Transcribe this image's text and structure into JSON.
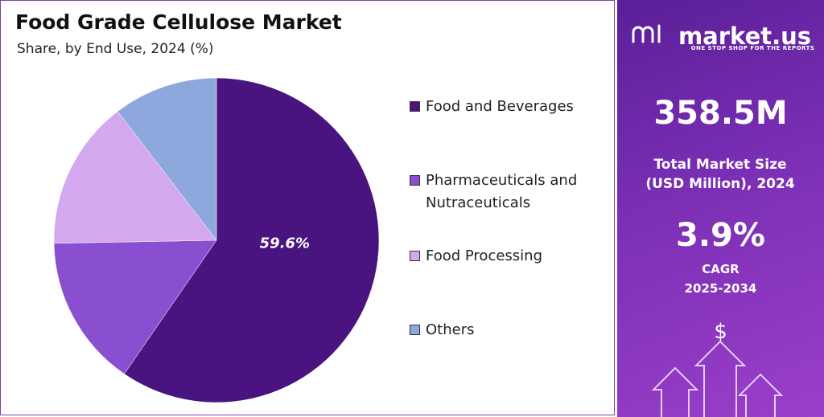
{
  "chart_data": {
    "type": "pie",
    "title": "Food Grade Cellulose Market",
    "subtitle": "Share, by End Use, 2024 (%)",
    "categories": [
      "Food and Beverages",
      "Pharmaceuticals and Nutraceuticals",
      "Food Processing",
      "Others"
    ],
    "values": [
      59.6,
      15.1,
      14.9,
      10.4
    ],
    "value_labels": [
      "59.6%",
      null,
      null,
      null
    ],
    "colors": [
      "#4a1480",
      "#8a4fd1",
      "#d4a8ef",
      "#8ea7dd"
    ],
    "legend": "right"
  },
  "panel": {
    "brand": "market.us",
    "tagline": "ONE STOP SHOP FOR THE REPORTS",
    "market_size": "358.5M",
    "market_size_label": "Total Market Size (USD Million), 2024",
    "cagr": "3.9%",
    "cagr_label": "CAGR",
    "cagr_period": "2025-2034",
    "currency": "$"
  }
}
